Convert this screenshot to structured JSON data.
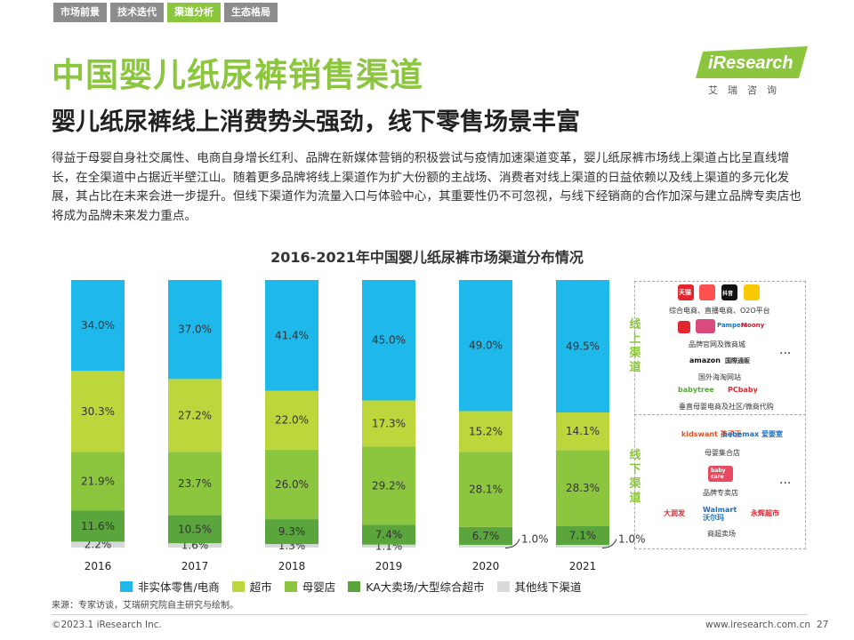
{
  "header": {
    "tabs": [
      {
        "label": "市场前景",
        "active": false
      },
      {
        "label": "技术迭代",
        "active": false
      },
      {
        "label": "渠道分析",
        "active": true
      },
      {
        "label": "生态格局",
        "active": false
      }
    ],
    "title": "中国婴儿纸尿裤销售渠道",
    "subtitle": "婴儿纸尿裤线上消费势头强劲，线下零售场景丰富",
    "logo_text": "iResearch",
    "logo_sub": "艾瑞咨询"
  },
  "body_text": "得益于母婴自身社交属性、电商自身增长红利、品牌在新媒体营销的积极尝试与疫情加速渠道变革，婴儿纸尿裤市场线上渠道占比呈直线增长，在全渠道中占据近半壁江山。随着更多品牌将线上渠道作为扩大份额的主战场、消费者对线上渠道的日益依赖以及线上渠道的多元化发展，其占比在未来会进一步提升。但线下渠道作为流量入口与体验中心，其重要性仍不可忽视，与线下经销商的合作加深与建立品牌专卖店也将成为品牌未来发力重点。",
  "chart_data": {
    "type": "bar",
    "stacked": true,
    "title": "2016-2021年中国婴儿纸尿裤市场渠道分布情况",
    "categories": [
      "2016",
      "2017",
      "2018",
      "2019",
      "2020",
      "2021"
    ],
    "series": [
      {
        "name": "其他线下渠道",
        "color": "#d9d9d9",
        "values": [
          2.2,
          1.6,
          1.3,
          1.1,
          1.0,
          1.0
        ],
        "labels": [
          "2.2%",
          "1.6%",
          "1.3%",
          "1.1%",
          "1.0%",
          "1.0%"
        ]
      },
      {
        "name": "KA大卖场/大型综合超市",
        "color": "#5aa53c",
        "values": [
          11.6,
          10.5,
          9.3,
          7.4,
          6.7,
          7.1
        ],
        "labels": [
          "11.6%",
          "10.5%",
          "9.3%",
          "7.4%",
          "6.7%",
          "7.1%"
        ]
      },
      {
        "name": "母婴店",
        "color": "#8cc63f",
        "values": [
          21.9,
          23.7,
          26.0,
          29.2,
          28.1,
          28.3
        ],
        "labels": [
          "21.9%",
          "23.7%",
          "26.0%",
          "29.2%",
          "28.1%",
          "28.3%"
        ]
      },
      {
        "name": "超市",
        "color": "#bcd63c",
        "values": [
          30.3,
          27.2,
          22.0,
          17.3,
          15.2,
          14.1
        ],
        "labels": [
          "30.3%",
          "27.2%",
          "22.0%",
          "17.3%",
          "15.2%",
          "14.1%"
        ]
      },
      {
        "name": "非实体零售/电商",
        "color": "#1fb8ea",
        "values": [
          34.0,
          37.0,
          41.4,
          45.0,
          49.0,
          49.5
        ],
        "labels": [
          "34.0%",
          "37.0%",
          "41.4%",
          "45.0%",
          "49.0%",
          "49.5%"
        ]
      }
    ],
    "legend_order": [
      "非实体零售/电商",
      "超市",
      "母婴店",
      "KA大卖场/大型综合超市",
      "其他线下渠道"
    ],
    "legend_position": "bottom",
    "ylim": [
      0,
      100
    ],
    "grid": false
  },
  "channels": {
    "online_label": "线上渠道",
    "offline_label": "线下渠道",
    "ellipsis": "...",
    "online": [
      {
        "caption": "综合电商、直播电商、O2O平台",
        "brands": [
          "天猫",
          "抖音"
        ]
      },
      {
        "caption": "品牌官网及微商城",
        "brands": [
          "Pampers",
          "Moony"
        ]
      },
      {
        "caption": "国外海淘网站",
        "brands": [
          "amazon",
          "国際通販"
        ]
      },
      {
        "caption": "垂直母婴电商及社区/微商代购",
        "brands": [
          "babytree",
          "PCbaby"
        ]
      }
    ],
    "offline": [
      {
        "caption": "母婴集合店",
        "brands": [
          "kidswant 孩子王",
          "babemax 爱婴室"
        ]
      },
      {
        "caption": "品牌专卖店",
        "brands": [
          "baby care"
        ]
      },
      {
        "caption": "商超卖场",
        "brands": [
          "大润发",
          "Walmart 沃尔玛",
          "永辉超市"
        ]
      }
    ]
  },
  "footer": {
    "source": "来源：专家访谈，艾瑞研究院自主研究与绘制。",
    "copyright": "©2023.1 iResearch Inc.",
    "website": "www.iresearch.com.cn",
    "page": "27"
  },
  "colors": {
    "accent": "#8cc63f",
    "tab_inactive": "#8c8c8c"
  }
}
